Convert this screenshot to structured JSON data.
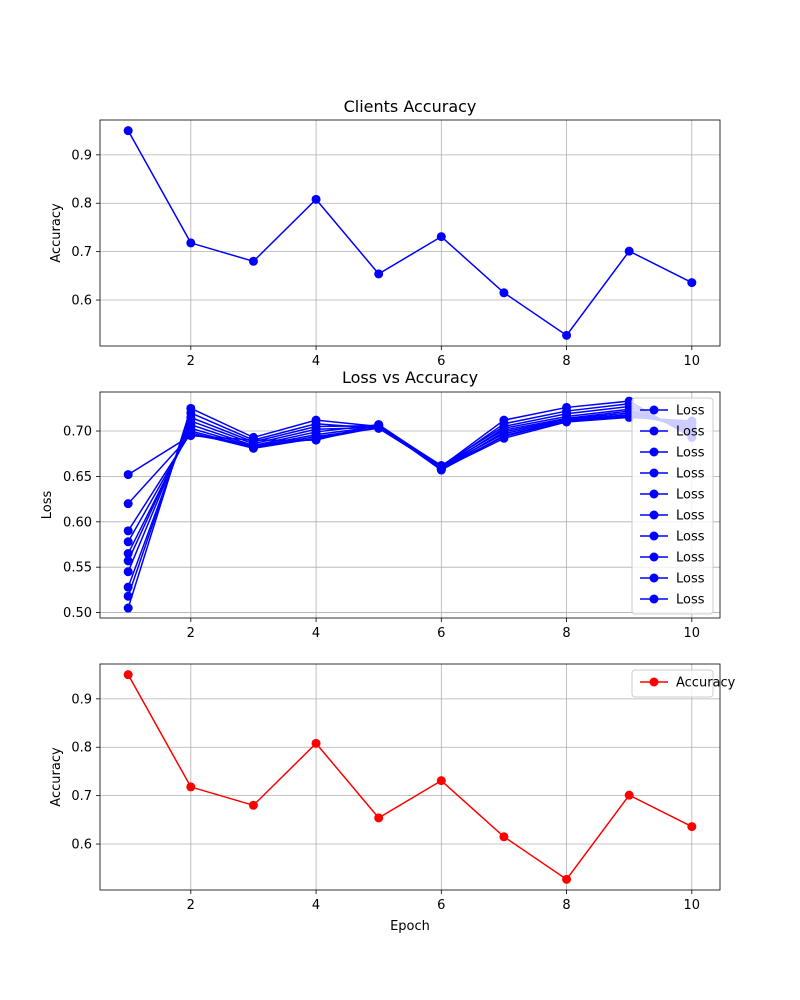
{
  "chart_data": [
    {
      "type": "line",
      "title": "Clients Accuracy",
      "xlabel": "",
      "ylabel": "Accuracy",
      "xlim": [
        0.55,
        10.45
      ],
      "ylim": [
        0.505,
        0.972
      ],
      "xticks": [
        "2",
        "4",
        "6",
        "8",
        "10"
      ],
      "yticks": [
        "0.6",
        "0.7",
        "0.8",
        "0.9"
      ],
      "grid": true,
      "legend": null,
      "series": [
        {
          "color": "#0000ff",
          "x": [
            1,
            2,
            3,
            4,
            5,
            6,
            7,
            8,
            9,
            10
          ],
          "y": [
            0.95,
            0.718,
            0.68,
            0.808,
            0.654,
            0.731,
            0.615,
            0.527,
            0.701,
            0.636
          ]
        }
      ]
    },
    {
      "type": "line",
      "title": "Loss vs Accuracy",
      "xlabel": "",
      "ylabel": "Loss",
      "xlim": [
        0.55,
        10.45
      ],
      "ylim": [
        0.494,
        0.743
      ],
      "xticks": [
        "2",
        "4",
        "6",
        "8",
        "10"
      ],
      "yticks": [
        "0.50",
        "0.55",
        "0.60",
        "0.65",
        "0.70"
      ],
      "grid": true,
      "legend": "upper right",
      "series": [
        {
          "name": "Loss",
          "color": "#0000ff",
          "x": [
            1,
            2,
            3,
            4,
            5,
            6,
            7,
            8,
            9,
            10
          ],
          "y": [
            0.505,
            0.725,
            0.693,
            0.712,
            0.705,
            0.661,
            0.712,
            0.726,
            0.733,
            0.693
          ]
        },
        {
          "name": "Loss",
          "color": "#0000ff",
          "x": [
            1,
            2,
            3,
            4,
            5,
            6,
            7,
            8,
            9,
            10
          ],
          "y": [
            0.518,
            0.72,
            0.69,
            0.708,
            0.703,
            0.66,
            0.708,
            0.722,
            0.73,
            0.695
          ]
        },
        {
          "name": "Loss",
          "color": "#0000ff",
          "x": [
            1,
            2,
            3,
            4,
            5,
            6,
            7,
            8,
            9,
            10
          ],
          "y": [
            0.528,
            0.715,
            0.688,
            0.705,
            0.706,
            0.662,
            0.705,
            0.719,
            0.727,
            0.697
          ]
        },
        {
          "name": "Loss",
          "color": "#0000ff",
          "x": [
            1,
            2,
            3,
            4,
            5,
            6,
            7,
            8,
            9,
            10
          ],
          "y": [
            0.545,
            0.711,
            0.686,
            0.702,
            0.704,
            0.659,
            0.703,
            0.716,
            0.724,
            0.699
          ]
        },
        {
          "name": "Loss",
          "color": "#0000ff",
          "x": [
            1,
            2,
            3,
            4,
            5,
            6,
            7,
            8,
            9,
            10
          ],
          "y": [
            0.557,
            0.707,
            0.684,
            0.699,
            0.707,
            0.661,
            0.701,
            0.714,
            0.722,
            0.701
          ]
        },
        {
          "name": "Loss",
          "color": "#0000ff",
          "x": [
            1,
            2,
            3,
            4,
            5,
            6,
            7,
            8,
            9,
            10
          ],
          "y": [
            0.565,
            0.703,
            0.683,
            0.696,
            0.705,
            0.658,
            0.699,
            0.713,
            0.72,
            0.703
          ]
        },
        {
          "name": "Loss",
          "color": "#0000ff",
          "x": [
            1,
            2,
            3,
            4,
            5,
            6,
            7,
            8,
            9,
            10
          ],
          "y": [
            0.578,
            0.7,
            0.682,
            0.694,
            0.703,
            0.66,
            0.697,
            0.712,
            0.718,
            0.705
          ]
        },
        {
          "name": "Loss",
          "color": "#0000ff",
          "x": [
            1,
            2,
            3,
            4,
            5,
            6,
            7,
            8,
            9,
            10
          ],
          "y": [
            0.59,
            0.698,
            0.681,
            0.692,
            0.706,
            0.657,
            0.695,
            0.711,
            0.717,
            0.707
          ]
        },
        {
          "name": "Loss",
          "color": "#0000ff",
          "x": [
            1,
            2,
            3,
            4,
            5,
            6,
            7,
            8,
            9,
            10
          ],
          "y": [
            0.62,
            0.696,
            0.684,
            0.691,
            0.704,
            0.659,
            0.694,
            0.711,
            0.716,
            0.709
          ]
        },
        {
          "name": "Loss",
          "color": "#0000ff",
          "x": [
            1,
            2,
            3,
            4,
            5,
            6,
            7,
            8,
            9,
            10
          ],
          "y": [
            0.652,
            0.695,
            0.69,
            0.69,
            0.707,
            0.658,
            0.692,
            0.71,
            0.715,
            0.711
          ]
        }
      ]
    },
    {
      "type": "line",
      "title": "",
      "xlabel": "Epoch",
      "ylabel": "Accuracy",
      "xlim": [
        0.55,
        10.45
      ],
      "ylim": [
        0.505,
        0.972
      ],
      "xticks": [
        "2",
        "4",
        "6",
        "8",
        "10"
      ],
      "yticks": [
        "0.6",
        "0.7",
        "0.8",
        "0.9"
      ],
      "grid": true,
      "legend": "upper right",
      "series": [
        {
          "name": "Accuracy",
          "color": "#ff0000",
          "x": [
            1,
            2,
            3,
            4,
            5,
            6,
            7,
            8,
            9,
            10
          ],
          "y": [
            0.95,
            0.718,
            0.68,
            0.808,
            0.654,
            0.731,
            0.615,
            0.527,
            0.701,
            0.636
          ]
        }
      ]
    }
  ]
}
